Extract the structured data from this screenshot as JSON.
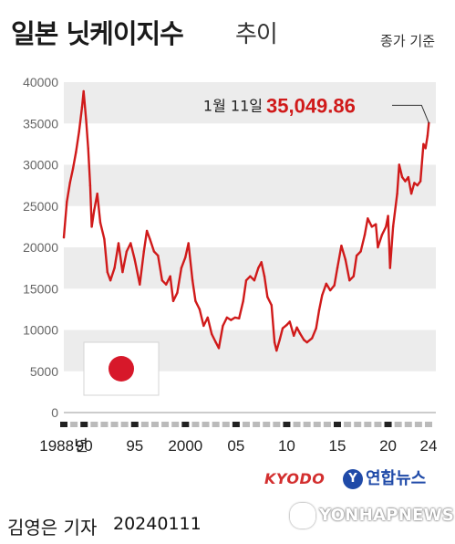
{
  "header": {
    "title": "일본 닛케이지수",
    "subtitle": "추이",
    "note": "종가 기준"
  },
  "annotation": {
    "date_label": "1월 11일",
    "value_label": "35,049.86"
  },
  "credits": {
    "agency": "KYODO",
    "logo_text": "연합뉴스",
    "logo_mark": "Y",
    "reporter": "김영은 기자",
    "date": "20240111",
    "watermark": "YONHAPNEWS"
  },
  "colors": {
    "line": "#d01a1a",
    "band": "#ececec",
    "flag_red": "#d7182a",
    "value_text": "#d01a1a"
  },
  "flag": "japan-flag",
  "chart_data": {
    "type": "line",
    "title": "일본 닛케이지수 추이",
    "ylim": [
      0,
      40000
    ],
    "yticks": [
      "0",
      "5000",
      "10000",
      "15000",
      "20000",
      "25000",
      "30000",
      "35000",
      "40000"
    ],
    "xlim": [
      1988,
      2024
    ],
    "xticks": [
      {
        "x": 1988,
        "label": "1988년"
      },
      {
        "x": 1990,
        "label": "90"
      },
      {
        "x": 1995,
        "label": "95"
      },
      {
        "x": 2000,
        "label": "2000"
      },
      {
        "x": 2005,
        "label": "05"
      },
      {
        "x": 2010,
        "label": "10"
      },
      {
        "x": 2015,
        "label": "15"
      },
      {
        "x": 2020,
        "label": "20"
      },
      {
        "x": 2024,
        "label": "24"
      }
    ],
    "grid": "alternating-bands",
    "series": [
      {
        "x": [
          1988.0,
          1988.3,
          1988.6,
          1988.9,
          1989.2,
          1989.5,
          1989.8,
          1989.95,
          1990.2,
          1990.4,
          1990.6,
          1990.75,
          1991.0,
          1991.3,
          1991.6,
          1992.0,
          1992.3,
          1992.6,
          1993.0,
          1993.4,
          1993.8,
          1994.2,
          1994.6,
          1995.0,
          1995.5,
          1995.9,
          1996.2,
          1996.5,
          1996.9,
          1997.3,
          1997.7,
          1998.1,
          1998.5,
          1998.8,
          1999.2,
          1999.6,
          2000.0,
          2000.3,
          2000.7,
          2001.0,
          2001.4,
          2001.8,
          2002.2,
          2002.6,
          2003.0,
          2003.3,
          2003.7,
          2004.1,
          2004.5,
          2004.9,
          2005.3,
          2005.7,
          2006.0,
          2006.4,
          2006.8,
          2007.2,
          2007.5,
          2007.8,
          2008.1,
          2008.5,
          2008.8,
          2009.0,
          2009.3,
          2009.6,
          2010.0,
          2010.3,
          2010.7,
          2011.0,
          2011.3,
          2011.7,
          2012.0,
          2012.5,
          2012.9,
          2013.2,
          2013.5,
          2013.9,
          2014.3,
          2014.7,
          2015.0,
          2015.4,
          2015.8,
          2016.2,
          2016.6,
          2016.9,
          2017.3,
          2017.7,
          2018.0,
          2018.4,
          2018.8,
          2019.0,
          2019.4,
          2019.8,
          2020.0,
          2020.2,
          2020.5,
          2020.9,
          2021.1,
          2021.4,
          2021.7,
          2022.0,
          2022.3,
          2022.6,
          2022.9,
          2023.2,
          2023.5,
          2023.7,
          2023.9,
          2024.03
        ],
        "y": [
          21200,
          25500,
          27800,
          29500,
          31500,
          34000,
          37000,
          38900,
          35500,
          32000,
          27500,
          22500,
          24500,
          26500,
          23000,
          21000,
          17000,
          16000,
          17500,
          20500,
          17000,
          19500,
          20500,
          18500,
          15500,
          19500,
          22000,
          21000,
          19500,
          19000,
          16000,
          15500,
          16500,
          13500,
          14500,
          17500,
          18800,
          20500,
          16000,
          13500,
          12500,
          10500,
          11500,
          9500,
          8500,
          7800,
          10500,
          11500,
          11200,
          11500,
          11400,
          13500,
          16000,
          16500,
          16000,
          17500,
          18200,
          16500,
          14000,
          13000,
          8500,
          7500,
          8800,
          10200,
          10600,
          11000,
          9300,
          10300,
          9600,
          8800,
          8500,
          9000,
          10200,
          12400,
          14200,
          15600,
          14800,
          15400,
          17500,
          20200,
          18500,
          16000,
          16500,
          19000,
          19500,
          21500,
          23500,
          22500,
          22800,
          20000,
          21500,
          22500,
          23800,
          17500,
          22500,
          26500,
          30000,
          28500,
          28000,
          28500,
          26500,
          27800,
          27500,
          28000,
          32500,
          32000,
          33500,
          35050
        ]
      }
    ]
  }
}
